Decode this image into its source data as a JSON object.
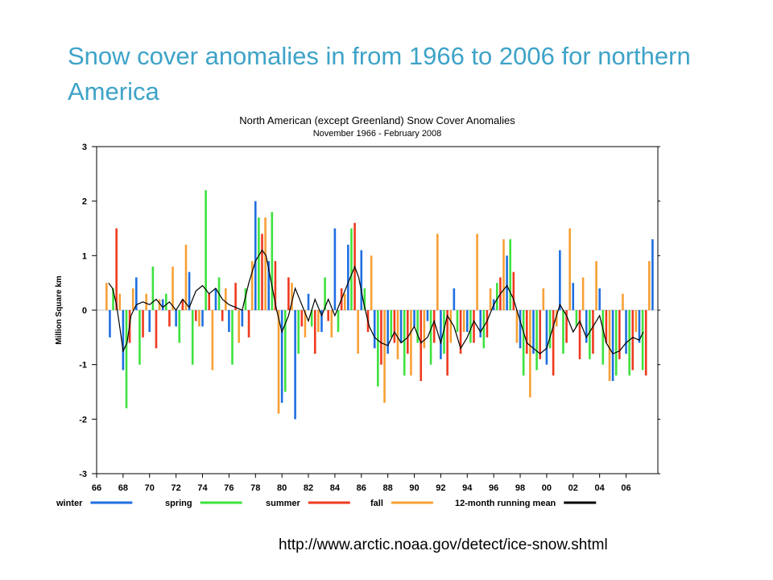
{
  "slide": {
    "title": "Snow cover anomalies in from 1966 to 2006 for northern America",
    "source_url": "http://www.arctic.noaa.gov/detect/ice-snow.shtml"
  },
  "chart_data": {
    "type": "bar",
    "title": "North American (except Greenland) Snow Cover Anomalies",
    "subtitle": "November 1966 - February 2008",
    "xlabel": "",
    "ylabel": "Million Square km",
    "ylim": [
      -3,
      3
    ],
    "yticks": [
      -3,
      -2,
      -1,
      0,
      1,
      2,
      3
    ],
    "xlim": [
      1966,
      2008.4
    ],
    "xticks": [
      "66",
      "68",
      "70",
      "72",
      "74",
      "76",
      "78",
      "80",
      "82",
      "84",
      "86",
      "88",
      "90",
      "92",
      "94",
      "96",
      "98",
      "00",
      "02",
      "04",
      "06"
    ],
    "grid": false,
    "legend_position": "bottom",
    "legend": [
      {
        "name": "winter",
        "color": "#1f6fe0"
      },
      {
        "name": "spring",
        "color": "#3ee23e"
      },
      {
        "name": "summer",
        "color": "#ee3a1e"
      },
      {
        "name": "fall",
        "color": "#f7a035"
      },
      {
        "name": "12-month running mean",
        "color": "#000000"
      }
    ],
    "season_order": [
      "fall",
      "winter",
      "spring",
      "summer"
    ],
    "series": [
      {
        "name": "winter",
        "color": "#1f6fe0",
        "points": [
          [
            1967.0,
            -0.5
          ],
          [
            1968.0,
            -1.1
          ],
          [
            1969.0,
            0.6
          ],
          [
            1970.0,
            -0.4
          ],
          [
            1971.0,
            0.2
          ],
          [
            1972.0,
            -0.3
          ],
          [
            1973.0,
            0.7
          ],
          [
            1974.0,
            -0.3
          ],
          [
            1975.0,
            0.4
          ],
          [
            1976.0,
            -0.4
          ],
          [
            1977.0,
            -0.3
          ],
          [
            1978.0,
            2.0
          ],
          [
            1979.0,
            0.9
          ],
          [
            1980.0,
            -1.7
          ],
          [
            1981.0,
            -2.0
          ],
          [
            1982.0,
            0.3
          ],
          [
            1983.0,
            -0.4
          ],
          [
            1984.0,
            1.5
          ],
          [
            1985.0,
            1.2
          ],
          [
            1986.0,
            1.1
          ],
          [
            1987.0,
            -0.7
          ],
          [
            1988.0,
            -0.8
          ],
          [
            1989.0,
            -0.6
          ],
          [
            1990.0,
            -0.3
          ],
          [
            1991.0,
            -0.2
          ],
          [
            1992.0,
            -0.9
          ],
          [
            1993.0,
            0.4
          ],
          [
            1994.0,
            -0.4
          ],
          [
            1995.0,
            -0.5
          ],
          [
            1996.0,
            0.2
          ],
          [
            1997.0,
            1.0
          ],
          [
            1998.0,
            -0.7
          ],
          [
            1999.0,
            -0.8
          ],
          [
            2000.0,
            -1.0
          ],
          [
            2001.0,
            1.1
          ],
          [
            2002.0,
            0.5
          ],
          [
            2003.0,
            -0.6
          ],
          [
            2004.0,
            0.4
          ],
          [
            2005.0,
            -1.3
          ],
          [
            2006.0,
            -0.8
          ],
          [
            2007.0,
            -0.6
          ],
          [
            2008.0,
            1.3
          ]
        ]
      },
      {
        "name": "spring",
        "color": "#3ee23e",
        "points": [
          [
            1967.25,
            0.4
          ],
          [
            1968.25,
            -1.8
          ],
          [
            1969.25,
            -1.0
          ],
          [
            1970.25,
            0.8
          ],
          [
            1971.25,
            0.3
          ],
          [
            1972.25,
            -0.6
          ],
          [
            1973.25,
            -1.0
          ],
          [
            1974.25,
            2.2
          ],
          [
            1975.25,
            0.6
          ],
          [
            1976.25,
            -1.0
          ],
          [
            1977.25,
            0.4
          ],
          [
            1978.25,
            1.7
          ],
          [
            1979.25,
            1.8
          ],
          [
            1980.25,
            -1.5
          ],
          [
            1981.25,
            -0.8
          ],
          [
            1982.25,
            -0.3
          ],
          [
            1983.25,
            0.6
          ],
          [
            1984.25,
            -0.4
          ],
          [
            1985.25,
            1.5
          ],
          [
            1986.25,
            0.4
          ],
          [
            1987.25,
            -1.4
          ],
          [
            1988.25,
            -0.5
          ],
          [
            1989.25,
            -1.2
          ],
          [
            1990.25,
            -0.6
          ],
          [
            1991.25,
            -1.0
          ],
          [
            1992.25,
            -0.8
          ],
          [
            1993.25,
            -0.4
          ],
          [
            1994.25,
            -0.6
          ],
          [
            1995.25,
            -0.7
          ],
          [
            1996.25,
            0.5
          ],
          [
            1997.25,
            1.3
          ],
          [
            1998.25,
            -1.2
          ],
          [
            1999.25,
            -1.1
          ],
          [
            2000.25,
            -0.7
          ],
          [
            2001.25,
            -0.8
          ],
          [
            2002.25,
            -0.3
          ],
          [
            2003.25,
            -0.9
          ],
          [
            2004.25,
            -1.0
          ],
          [
            2005.25,
            -1.2
          ],
          [
            2006.25,
            -1.2
          ],
          [
            2007.25,
            -1.1
          ]
        ]
      },
      {
        "name": "summer",
        "color": "#ee3a1e",
        "points": [
          [
            1967.5,
            1.5
          ],
          [
            1968.5,
            -0.6
          ],
          [
            1969.5,
            -0.5
          ],
          [
            1970.5,
            -0.7
          ],
          [
            1971.5,
            -0.3
          ],
          [
            1972.5,
            0.2
          ],
          [
            1973.5,
            -0.2
          ],
          [
            1974.5,
            0.3
          ],
          [
            1975.5,
            -0.2
          ],
          [
            1976.5,
            0.5
          ],
          [
            1977.5,
            -0.5
          ],
          [
            1978.5,
            1.4
          ],
          [
            1979.5,
            0.9
          ],
          [
            1980.5,
            0.6
          ],
          [
            1981.5,
            -0.3
          ],
          [
            1982.5,
            -0.8
          ],
          [
            1983.5,
            -0.2
          ],
          [
            1984.5,
            0.4
          ],
          [
            1985.5,
            1.6
          ],
          [
            1986.5,
            -0.4
          ],
          [
            1987.5,
            -1.0
          ],
          [
            1988.5,
            -0.6
          ],
          [
            1989.5,
            -0.8
          ],
          [
            1990.5,
            -1.3
          ],
          [
            1991.5,
            -0.6
          ],
          [
            1992.5,
            -1.2
          ],
          [
            1993.5,
            -0.8
          ],
          [
            1994.5,
            -0.6
          ],
          [
            1995.5,
            -0.5
          ],
          [
            1996.5,
            0.6
          ],
          [
            1997.5,
            0.7
          ],
          [
            1998.5,
            -0.8
          ],
          [
            1999.5,
            -0.9
          ],
          [
            2000.5,
            -1.2
          ],
          [
            2001.5,
            -0.6
          ],
          [
            2002.5,
            -0.9
          ],
          [
            2003.5,
            -0.8
          ],
          [
            2004.5,
            -0.6
          ],
          [
            2005.5,
            -0.9
          ],
          [
            2006.5,
            -1.1
          ],
          [
            2007.5,
            -1.2
          ]
        ]
      },
      {
        "name": "fall",
        "color": "#f7a035",
        "points": [
          [
            1966.75,
            0.5
          ],
          [
            1967.75,
            0.3
          ],
          [
            1968.75,
            0.4
          ],
          [
            1969.75,
            0.3
          ],
          [
            1970.75,
            0.2
          ],
          [
            1971.75,
            0.8
          ],
          [
            1972.75,
            1.2
          ],
          [
            1973.75,
            -0.3
          ],
          [
            1974.75,
            -1.1
          ],
          [
            1975.75,
            0.4
          ],
          [
            1976.75,
            -0.6
          ],
          [
            1977.75,
            0.9
          ],
          [
            1978.75,
            1.7
          ],
          [
            1979.75,
            -1.9
          ],
          [
            1980.75,
            0.5
          ],
          [
            1981.75,
            -0.5
          ],
          [
            1982.75,
            -0.4
          ],
          [
            1983.75,
            -0.5
          ],
          [
            1984.75,
            0.3
          ],
          [
            1985.75,
            -0.8
          ],
          [
            1986.75,
            1.0
          ],
          [
            1987.75,
            -1.7
          ],
          [
            1988.75,
            -0.9
          ],
          [
            1989.75,
            -1.2
          ],
          [
            1990.75,
            -0.7
          ],
          [
            1991.75,
            1.4
          ],
          [
            1992.75,
            -0.6
          ],
          [
            1993.75,
            -0.4
          ],
          [
            1994.75,
            1.4
          ],
          [
            1995.75,
            0.4
          ],
          [
            1996.75,
            1.3
          ],
          [
            1997.75,
            -0.6
          ],
          [
            1998.75,
            -1.6
          ],
          [
            1999.75,
            0.4
          ],
          [
            2000.75,
            -0.3
          ],
          [
            2001.75,
            1.5
          ],
          [
            2002.75,
            0.6
          ],
          [
            2003.75,
            0.9
          ],
          [
            2004.75,
            -1.3
          ],
          [
            2005.75,
            0.3
          ],
          [
            2006.75,
            -0.4
          ],
          [
            2007.75,
            0.9
          ]
        ]
      },
      {
        "name": "12-month running mean",
        "color": "#000000",
        "kind": "line",
        "points": [
          [
            1966.9,
            0.5
          ],
          [
            1967.2,
            0.4
          ],
          [
            1967.5,
            0.1
          ],
          [
            1967.8,
            -0.4
          ],
          [
            1968.0,
            -0.75
          ],
          [
            1968.3,
            -0.6
          ],
          [
            1968.6,
            -0.1
          ],
          [
            1969.0,
            0.1
          ],
          [
            1969.5,
            0.15
          ],
          [
            1970.0,
            0.1
          ],
          [
            1970.5,
            0.2
          ],
          [
            1971.0,
            0.05
          ],
          [
            1971.5,
            0.15
          ],
          [
            1972.0,
            0.0
          ],
          [
            1972.5,
            0.2
          ],
          [
            1973.0,
            0.05
          ],
          [
            1973.5,
            0.35
          ],
          [
            1974.0,
            0.45
          ],
          [
            1974.5,
            0.3
          ],
          [
            1975.0,
            0.4
          ],
          [
            1975.5,
            0.2
          ],
          [
            1976.0,
            0.1
          ],
          [
            1976.5,
            0.05
          ],
          [
            1977.0,
            0.0
          ],
          [
            1977.5,
            0.5
          ],
          [
            1978.0,
            0.9
          ],
          [
            1978.5,
            1.1
          ],
          [
            1978.8,
            1.0
          ],
          [
            1979.2,
            0.5
          ],
          [
            1979.6,
            0.0
          ],
          [
            1980.0,
            -0.4
          ],
          [
            1980.5,
            -0.1
          ],
          [
            1981.0,
            0.4
          ],
          [
            1981.5,
            0.1
          ],
          [
            1982.0,
            -0.2
          ],
          [
            1982.5,
            0.2
          ],
          [
            1983.0,
            -0.1
          ],
          [
            1983.5,
            0.2
          ],
          [
            1984.0,
            -0.1
          ],
          [
            1984.5,
            0.2
          ],
          [
            1985.0,
            0.5
          ],
          [
            1985.5,
            0.8
          ],
          [
            1985.8,
            0.6
          ],
          [
            1986.2,
            0.1
          ],
          [
            1986.6,
            -0.3
          ],
          [
            1987.0,
            -0.5
          ],
          [
            1987.5,
            -0.6
          ],
          [
            1988.0,
            -0.65
          ],
          [
            1988.5,
            -0.4
          ],
          [
            1989.0,
            -0.6
          ],
          [
            1989.5,
            -0.5
          ],
          [
            1990.0,
            -0.3
          ],
          [
            1990.5,
            -0.6
          ],
          [
            1991.0,
            -0.5
          ],
          [
            1991.5,
            -0.2
          ],
          [
            1992.0,
            -0.6
          ],
          [
            1992.5,
            -0.1
          ],
          [
            1993.0,
            -0.3
          ],
          [
            1993.5,
            -0.7
          ],
          [
            1994.0,
            -0.5
          ],
          [
            1994.5,
            -0.2
          ],
          [
            1995.0,
            -0.4
          ],
          [
            1995.5,
            -0.2
          ],
          [
            1996.0,
            0.1
          ],
          [
            1996.5,
            0.3
          ],
          [
            1997.0,
            0.45
          ],
          [
            1997.5,
            0.2
          ],
          [
            1998.0,
            -0.2
          ],
          [
            1998.5,
            -0.6
          ],
          [
            1999.0,
            -0.7
          ],
          [
            1999.5,
            -0.8
          ],
          [
            2000.0,
            -0.7
          ],
          [
            2000.5,
            -0.3
          ],
          [
            2001.0,
            0.1
          ],
          [
            2001.5,
            -0.1
          ],
          [
            2002.0,
            -0.4
          ],
          [
            2002.5,
            -0.2
          ],
          [
            2003.0,
            -0.5
          ],
          [
            2003.5,
            -0.3
          ],
          [
            2004.0,
            -0.1
          ],
          [
            2004.5,
            -0.6
          ],
          [
            2005.0,
            -0.8
          ],
          [
            2005.5,
            -0.75
          ],
          [
            2006.0,
            -0.6
          ],
          [
            2006.5,
            -0.5
          ],
          [
            2007.0,
            -0.55
          ],
          [
            2007.3,
            -0.4
          ]
        ]
      }
    ]
  }
}
